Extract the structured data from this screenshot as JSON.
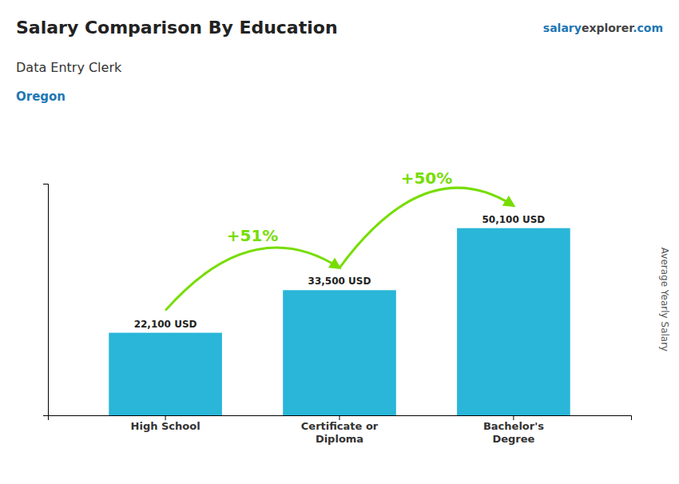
{
  "chart_data": {
    "type": "bar",
    "title": "Salary Comparison By Education",
    "subtitle": [
      "Data Entry Clerk",
      "Oregon"
    ],
    "credit": [
      "salary",
      "explorer",
      ".com"
    ],
    "ylabel": "Average Yearly Salary",
    "categories": [
      "High School",
      "Certificate or\nDiploma",
      "Bachelor's\nDegree"
    ],
    "values": [
      22100,
      33500,
      50100
    ],
    "value_labels": [
      "22,100 USD",
      "33,500 USD",
      "50,100 USD"
    ],
    "data_labels": true,
    "color": "#29b6d8",
    "annotations": [
      {
        "text": "+51%",
        "color": "#77dd00"
      },
      {
        "text": "+50%",
        "color": "#77dd00"
      }
    ],
    "ylim": [
      0,
      62000
    ],
    "tick_labels": "x",
    "grid": false
  }
}
